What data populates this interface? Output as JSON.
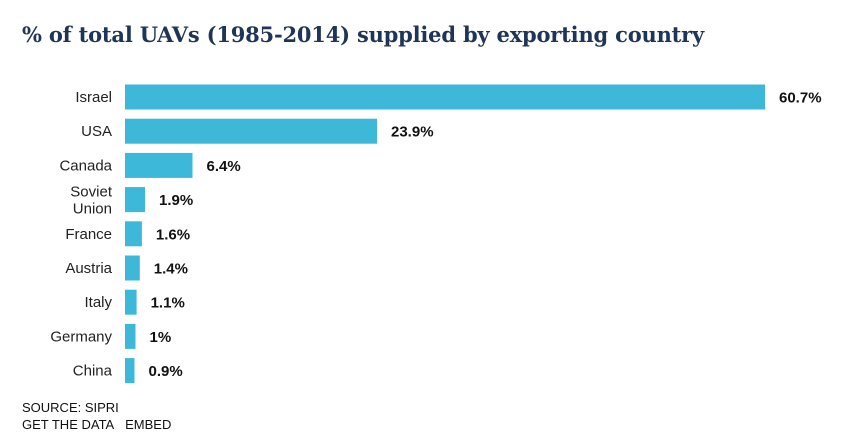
{
  "chart_data": {
    "type": "bar",
    "orientation": "horizontal",
    "title": "% of total UAVs (1985-2014) supplied by exporting country",
    "categories": [
      "Israel",
      "USA",
      "Canada",
      "Soviet Union",
      "France",
      "Austria",
      "Italy",
      "Germany",
      "China"
    ],
    "values": [
      60.7,
      23.9,
      6.4,
      1.9,
      1.6,
      1.4,
      1.1,
      1.0,
      0.9
    ],
    "value_labels": [
      "60.7%",
      "23.9%",
      "6.4%",
      "1.9%",
      "1.6%",
      "1.4%",
      "1.1%",
      "1%",
      "0.9%"
    ],
    "xlabel": "",
    "ylabel": "",
    "grid": false,
    "legend": "none",
    "bar_color": "#3db8d9"
  },
  "footer": {
    "source": "SOURCE: SIPRI",
    "get_data": "GET THE DATA",
    "embed": "EMBED"
  }
}
